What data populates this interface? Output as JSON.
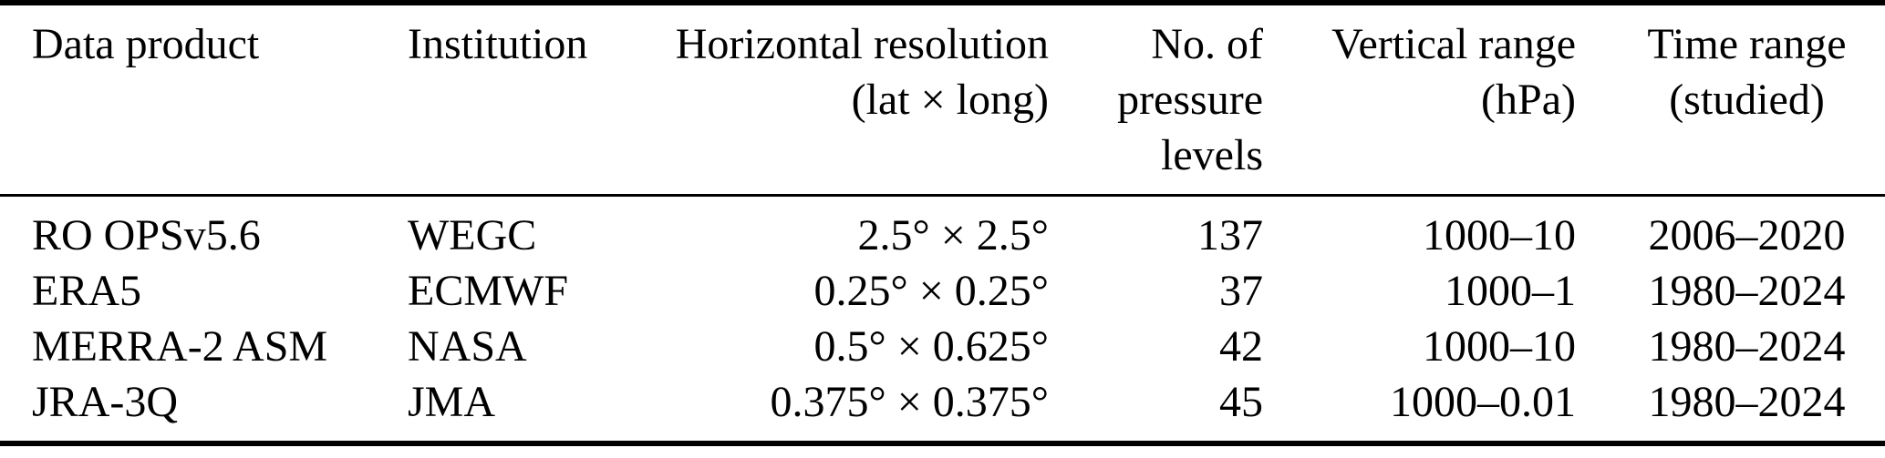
{
  "colors": {
    "text": "#000000",
    "background": "#ffffff",
    "rule": "#000000"
  },
  "table": {
    "columns": [
      {
        "id": "product",
        "header": "Data product"
      },
      {
        "id": "institution",
        "header": "Institution"
      },
      {
        "id": "resolution",
        "header": "Horizontal resolution\n(lat × long)"
      },
      {
        "id": "levels",
        "header": "No. of\npressure\nlevels"
      },
      {
        "id": "vertical",
        "header": "Vertical range\n(hPa)"
      },
      {
        "id": "time",
        "header": "Time range\n(studied)"
      }
    ],
    "rows": [
      {
        "product": "RO OPSv5.6",
        "institution": "WEGC",
        "resolution": "2.5° × 2.5°",
        "levels": "137",
        "vertical_range": "1000–10",
        "time_range": "2006–2020"
      },
      {
        "product": "ERA5",
        "institution": "ECMWF",
        "resolution": "0.25° × 0.25°",
        "levels": "37",
        "vertical_range": "1000–1",
        "time_range": "1980–2024"
      },
      {
        "product": "MERRA-2 ASM",
        "institution": "NASA",
        "resolution": "0.5° × 0.625°",
        "levels": "42",
        "vertical_range": "1000–10",
        "time_range": "1980–2024"
      },
      {
        "product": "JRA-3Q",
        "institution": "JMA",
        "resolution": "0.375° × 0.375°",
        "levels": "45",
        "vertical_range": "1000–0.01",
        "time_range": "1980–2024"
      }
    ]
  },
  "chart_data": {
    "type": "table",
    "title": "",
    "headers": [
      "Data product",
      "Institution",
      "Horizontal resolution (lat × long)",
      "No. of pressure levels",
      "Vertical range (hPa)",
      "Time range (studied)"
    ],
    "rows": [
      [
        "RO OPSv5.6",
        "WEGC",
        "2.5° × 2.5°",
        137,
        "1000–10",
        "2006–2020"
      ],
      [
        "ERA5",
        "ECMWF",
        "0.25° × 0.25°",
        37,
        "1000–1",
        "1980–2024"
      ],
      [
        "MERRA-2 ASM",
        "NASA",
        "0.5° × 0.625°",
        42,
        "1000–10",
        "1980–2024"
      ],
      [
        "JRA-3Q",
        "JMA",
        "0.375° × 0.375°",
        45,
        "1000–0.01",
        "1980–2024"
      ]
    ]
  }
}
